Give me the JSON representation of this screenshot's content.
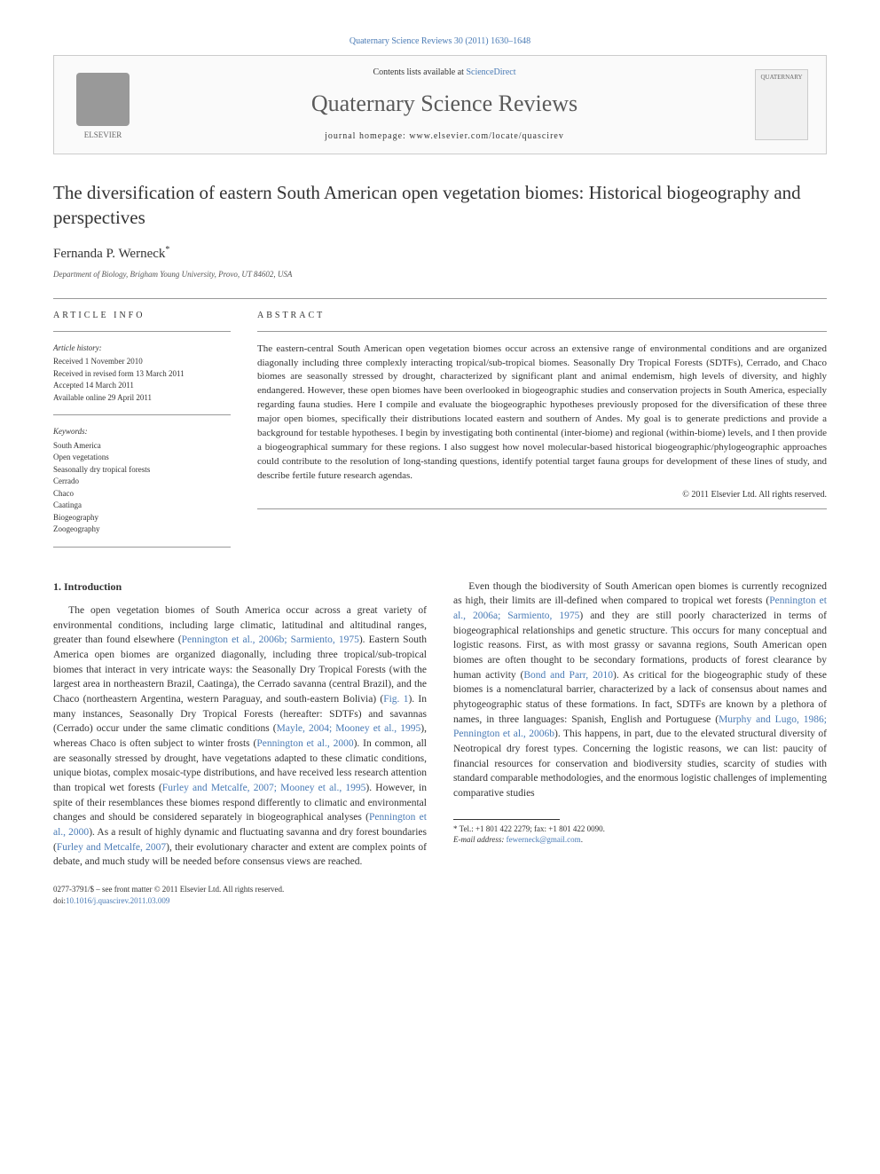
{
  "header": {
    "citation": "Quaternary Science Reviews 30 (2011) 1630–1648",
    "contents_prefix": "Contents lists available at ",
    "contents_link": "ScienceDirect",
    "journal_title": "Quaternary Science Reviews",
    "homepage_prefix": "journal homepage: ",
    "homepage_url": "www.elsevier.com/locate/quascirev",
    "publisher_name": "ELSEVIER",
    "cover_label": "QUATERNARY"
  },
  "article": {
    "title": "The diversification of eastern South American open vegetation biomes: Historical biogeography and perspectives",
    "author": "Fernanda P. Werneck",
    "author_marker": "*",
    "affiliation": "Department of Biology, Brigham Young University, Provo, UT 84602, USA"
  },
  "info": {
    "heading": "ARTICLE INFO",
    "history_label": "Article history:",
    "received": "Received 1 November 2010",
    "revised": "Received in revised form 13 March 2011",
    "accepted": "Accepted 14 March 2011",
    "online": "Available online 29 April 2011",
    "keywords_label": "Keywords:",
    "keywords": [
      "South America",
      "Open vegetations",
      "Seasonally dry tropical forests",
      "Cerrado",
      "Chaco",
      "Caatinga",
      "Biogeography",
      "Zoogeography"
    ]
  },
  "abstract": {
    "heading": "ABSTRACT",
    "text": "The eastern-central South American open vegetation biomes occur across an extensive range of environmental conditions and are organized diagonally including three complexly interacting tropical/sub-tropical biomes. Seasonally Dry Tropical Forests (SDTFs), Cerrado, and Chaco biomes are seasonally stressed by drought, characterized by significant plant and animal endemism, high levels of diversity, and highly endangered. However, these open biomes have been overlooked in biogeographic studies and conservation projects in South America, especially regarding fauna studies. Here I compile and evaluate the biogeographic hypotheses previously proposed for the diversification of these three major open biomes, specifically their distributions located eastern and southern of Andes. My goal is to generate predictions and provide a background for testable hypotheses. I begin by investigating both continental (inter-biome) and regional (within-biome) levels, and I then provide a biogeographical summary for these regions. I also suggest how novel molecular-based historical biogeographic/phylogeographic approaches could contribute to the resolution of long-standing questions, identify potential target fauna groups for development of these lines of study, and describe fertile future research agendas.",
    "copyright": "© 2011 Elsevier Ltd. All rights reserved."
  },
  "sections": {
    "intro_heading": "1. Introduction",
    "para1_a": "The open vegetation biomes of South America occur across a great variety of environmental conditions, including large climatic, latitudinal and altitudinal ranges, greater than found elsewhere (",
    "para1_cite1": "Pennington et al., 2006b; Sarmiento, 1975",
    "para1_b": "). Eastern South America open biomes are organized diagonally, including three tropical/sub-tropical biomes that interact in very intricate ways: the Seasonally Dry Tropical Forests (with the largest area in northeastern Brazil, Caatinga), the Cerrado savanna (central Brazil), and the Chaco (northeastern Argentina, western Paraguay, and south-eastern Bolivia) (",
    "para1_cite2": "Fig. 1",
    "para1_c": "). In many instances, Seasonally Dry Tropical Forests (hereafter: SDTFs) and savannas (Cerrado) occur under the same climatic conditions (",
    "para1_cite3": "Mayle, 2004; Mooney et al., 1995",
    "para1_d": "), whereas Chaco is often subject to winter frosts (",
    "para1_cite4": "Pennington et al., 2000",
    "para1_e": "). In common, all are seasonally stressed by drought, have vegetations adapted to these climatic conditions, unique biotas, complex mosaic-type distributions, and have received less research attention than tropical wet forests (",
    "para1_cite5": "Furley and Metcalfe, 2007; Mooney et al., 1995",
    "para1_f": "). However, in spite of their resemblances these biomes respond differently to climatic and",
    "colbreak_a": "environmental changes and should be considered separately in biogeographical analyses (",
    "colbreak_cite1": "Pennington et al., 2000",
    "colbreak_b": "). As a result of highly dynamic and fluctuating savanna and dry forest boundaries (",
    "colbreak_cite2": "Furley and Metcalfe, 2007",
    "colbreak_c": "), their evolutionary character and extent are complex points of debate, and much study will be needed before consensus views are reached.",
    "para2_a": "Even though the biodiversity of South American open biomes is currently recognized as high, their limits are ill-defined when compared to tropical wet forests (",
    "para2_cite1": "Pennington et al., 2006a; Sarmiento, 1975",
    "para2_b": ") and they are still poorly characterized in terms of biogeographical relationships and genetic structure. This occurs for many conceptual and logistic reasons. First, as with most grassy or savanna regions, South American open biomes are often thought to be secondary formations, products of forest clearance by human activity (",
    "para2_cite2": "Bond and Parr, 2010",
    "para2_c": "). As critical for the biogeographic study of these biomes is a nomenclatural barrier, characterized by a lack of consensus about names and phytogeographic status of these formations. In fact, SDTFs are known by a plethora of names, in three languages: Spanish, English and Portuguese (",
    "para2_cite3": "Murphy and Lugo, 1986; Pennington et al., 2006b",
    "para2_d": "). This happens, in part, due to the elevated structural diversity of Neotropical dry forest types. Concerning the logistic reasons, we can list: paucity of financial resources for conservation and biodiversity studies, scarcity of studies with standard comparable methodologies, and the enormous logistic challenges of implementing comparative studies"
  },
  "footnote": {
    "marker": "*",
    "tel": " Tel.: +1 801 422 2279; fax: +1 801 422 0090.",
    "email_label": "E-mail address: ",
    "email": "fewerneck@gmail.com"
  },
  "footer": {
    "issn_line": "0277-3791/$ – see front matter © 2011 Elsevier Ltd. All rights reserved.",
    "doi_prefix": "doi:",
    "doi": "10.1016/j.quascirev.2011.03.009"
  },
  "colors": {
    "link": "#4a7bb5",
    "text": "#333333",
    "border": "#cccccc",
    "rule": "#999999"
  }
}
